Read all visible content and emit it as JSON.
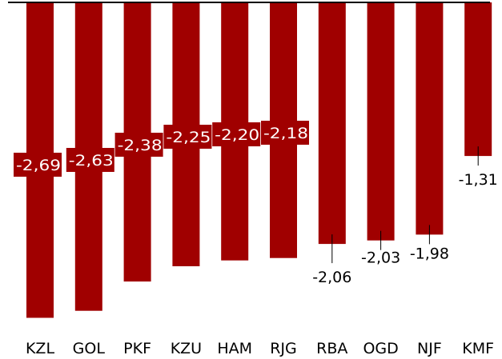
{
  "chart_data": {
    "type": "bar",
    "orientation": "vertical",
    "title": "",
    "xlabel": "",
    "ylabel": "",
    "categories": [
      "KZL",
      "GOL",
      "PKF",
      "KZU",
      "HAM",
      "RJG",
      "RBA",
      "OGD",
      "NJF",
      "KMF"
    ],
    "values": [
      -2.69,
      -2.63,
      -2.38,
      -2.25,
      -2.2,
      -2.18,
      -2.06,
      -2.03,
      -1.98,
      -1.31
    ],
    "value_labels": [
      "-2,69",
      "-2,63",
      "-2,38",
      "-2,25",
      "-2,20",
      "-2,18",
      "-2,06",
      "-2,03",
      "-1,98",
      "-1,31"
    ],
    "ylim": [
      -2.85,
      0
    ],
    "grid": false,
    "legend": "none",
    "bar_color": "#a00000",
    "axis_color": "#000000"
  }
}
